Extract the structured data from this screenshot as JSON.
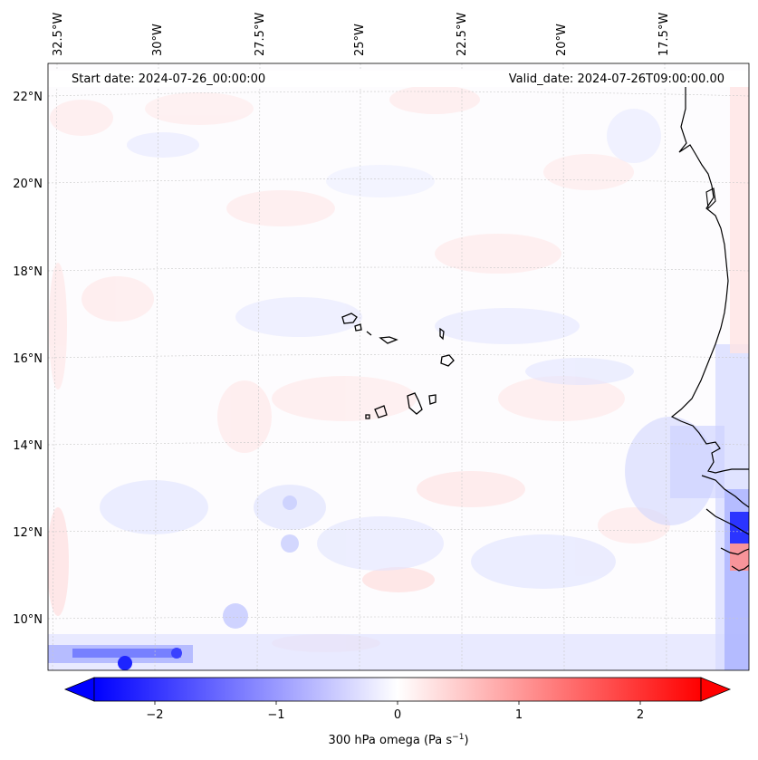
{
  "map": {
    "start_date_label": "Start date: 2024-07-26_00:00:00",
    "valid_date_label": "Valid_date: 2024-07-26T09:00:00.00",
    "longitude_labels": [
      "32.5°W",
      "30°W",
      "27.5°W",
      "25°W",
      "22.5°W",
      "20°W",
      "17.5°W"
    ],
    "latitude_labels": [
      "22°N",
      "20°N",
      "18°N",
      "16°N",
      "14°N",
      "12°N",
      "10°N"
    ],
    "features": [
      "cape-verde-islands",
      "west-africa-coastline"
    ]
  },
  "colorbar": {
    "tick_labels": [
      "−2",
      "−1",
      "0",
      "1",
      "2"
    ],
    "label_main": "300 hPa omega (Pa s",
    "label_sup": "−1",
    "label_end": ")",
    "min": -2.5,
    "max": 2.5,
    "colors": {
      "negative": "#0000ff",
      "zero": "#ffffff",
      "positive": "#ff0000"
    }
  }
}
